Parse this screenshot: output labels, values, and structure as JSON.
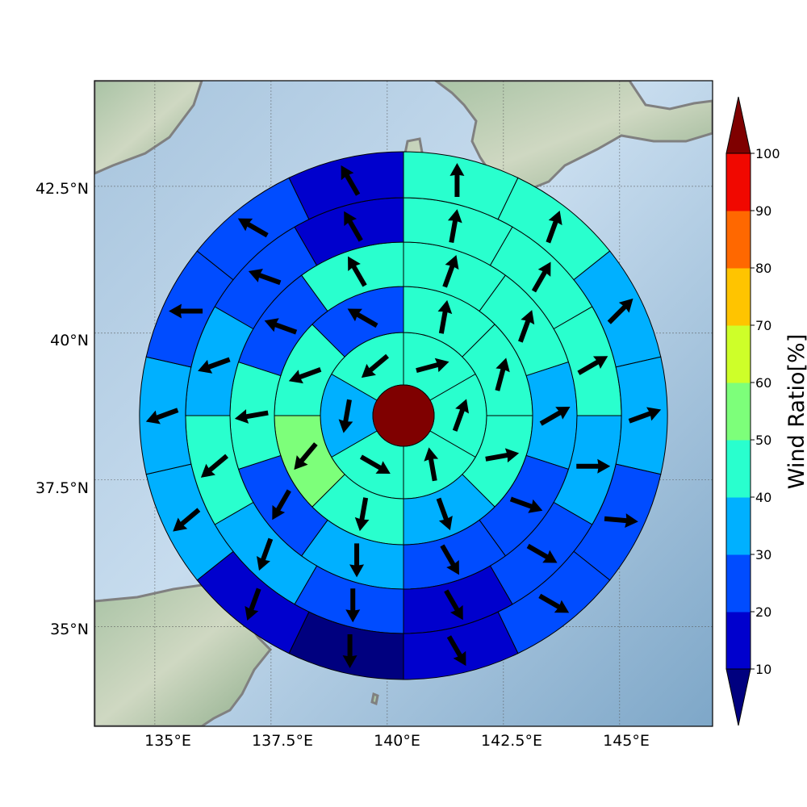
{
  "map": {
    "lon_ticks": [
      "135°E",
      "137.5°E",
      "140°E",
      "142.5°E",
      "145°E"
    ],
    "lat_ticks": [
      "42.5°N",
      "40°N",
      "37.5°N",
      "35°N"
    ],
    "lon_range": [
      133.7,
      147.0
    ],
    "lat_range": [
      33.3,
      44.3
    ],
    "center": {
      "lon": 140.1,
      "lat": 38.6
    },
    "rings": [
      {
        "sectors": 6,
        "ratio": [
          40,
          40,
          40,
          40,
          30,
          40
        ],
        "arrow_deg": [
          75,
          20,
          350,
          120,
          190,
          230
        ]
      },
      {
        "sectors": 8,
        "ratio": [
          40,
          40,
          40,
          30,
          40,
          50,
          40,
          20
        ],
        "arrow_deg": [
          10,
          15,
          80,
          160,
          190,
          220,
          250,
          300
        ]
      },
      {
        "sectors": 10,
        "ratio": [
          40,
          40,
          30,
          20,
          20,
          30,
          20,
          40,
          20,
          40
        ],
        "arrow_deg": [
          20,
          20,
          60,
          110,
          150,
          180,
          210,
          260,
          290,
          330
        ]
      },
      {
        "sectors": 12,
        "ratio": [
          40,
          40,
          40,
          30,
          20,
          10,
          20,
          30,
          40,
          30,
          20,
          10
        ],
        "arrow_deg": [
          10,
          30,
          60,
          90,
          120,
          150,
          180,
          200,
          230,
          250,
          290,
          330
        ]
      },
      {
        "sectors": 14,
        "ratio": [
          40,
          40,
          30,
          30,
          20,
          20,
          10,
          0,
          10,
          30,
          30,
          20,
          20,
          10
        ],
        "arrow_deg": [
          0,
          20,
          45,
          70,
          95,
          120,
          150,
          180,
          200,
          230,
          250,
          270,
          300,
          330
        ]
      }
    ],
    "center_disc_ratio": 100,
    "coast_color": "#808080"
  },
  "colorbar": {
    "label": "Wind Ratio[%]",
    "ticks": [
      "10",
      "20",
      "30",
      "40",
      "50",
      "60",
      "70",
      "80",
      "90",
      "100"
    ],
    "colors": [
      "#0000cd",
      "#004cff",
      "#00b0ff",
      "#29ffce",
      "#7dff7a",
      "#ceff29",
      "#ffc400",
      "#ff6800",
      "#f10800"
    ],
    "under_color": "#00007f",
    "over_color": "#7f0000"
  }
}
